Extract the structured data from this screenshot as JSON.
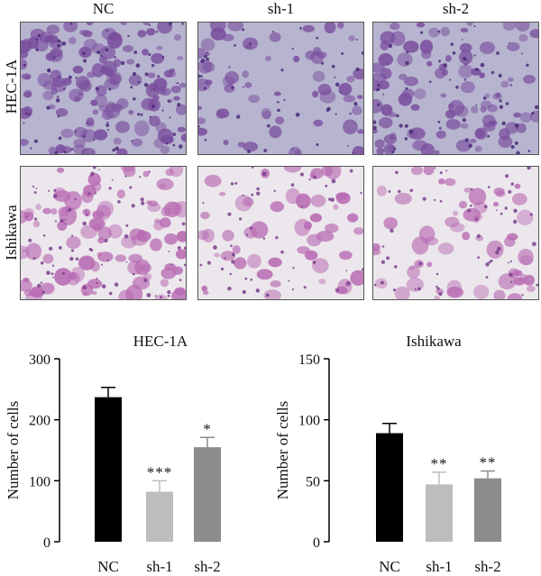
{
  "micrographs": {
    "columns": [
      "NC",
      "sh-1",
      "sh-2"
    ],
    "rows": [
      "HEC-1A",
      "Ishikawa"
    ],
    "colors": {
      "hec_bg": "#b7b4cf",
      "hec_cell": "#7a4f9e",
      "hec_nucleus": "#4b2a78",
      "ish_bg": "#ece7ec",
      "ish_cell": "#b86bb3",
      "ish_nucleus": "#7a3f8d"
    }
  },
  "chart_data": [
    {
      "type": "bar",
      "title": "HEC-1A",
      "categories": [
        "NC",
        "sh-1",
        "sh-2"
      ],
      "values": [
        237,
        82,
        155
      ],
      "errors": [
        16,
        18,
        16
      ],
      "significance": [
        "",
        "***",
        "*"
      ],
      "ylabel": "Number of cells",
      "ylim": [
        0,
        300
      ],
      "yticks": [
        "0",
        "100",
        "200",
        "300"
      ],
      "bar_colors": [
        "#000000",
        "#bdbdbd",
        "#8c8c8c"
      ]
    },
    {
      "type": "bar",
      "title": "Ishikawa",
      "categories": [
        "NC",
        "sh-1",
        "sh-2"
      ],
      "values": [
        89,
        47,
        52
      ],
      "errors": [
        8,
        10,
        6
      ],
      "significance": [
        "",
        "**",
        "**"
      ],
      "ylabel": "Number of cells",
      "ylim": [
        0,
        150
      ],
      "yticks": [
        "0",
        "50",
        "100",
        "150"
      ],
      "bar_colors": [
        "#000000",
        "#bdbdbd",
        "#8c8c8c"
      ]
    }
  ]
}
